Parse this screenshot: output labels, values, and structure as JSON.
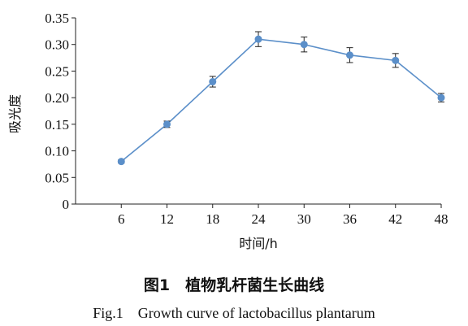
{
  "chart_data": {
    "type": "line",
    "xlabel": "时间/h",
    "ylabel": "吸光度",
    "x": [
      6,
      12,
      18,
      24,
      30,
      36,
      42,
      48
    ],
    "series": [
      {
        "values": [
          0.08,
          0.15,
          0.23,
          0.31,
          0.3,
          0.28,
          0.27,
          0.2
        ],
        "error": [
          0.003,
          0.006,
          0.01,
          0.014,
          0.014,
          0.014,
          0.013,
          0.008
        ],
        "color": "#5b8fc9"
      }
    ],
    "ylim": [
      0,
      0.35
    ],
    "yticks": [
      "0",
      "0.05",
      "0.10",
      "0.15",
      "0.20",
      "0.25",
      "0.30",
      "0.35"
    ],
    "xticks": [
      "6",
      "12",
      "18",
      "24",
      "30",
      "36",
      "42",
      "48"
    ],
    "grid": false,
    "legend": "none"
  },
  "caption": {
    "cn": "图1　植物乳杆菌生长曲线",
    "en": "Fig.1　Growth curve of lactobacillus plantarum"
  }
}
